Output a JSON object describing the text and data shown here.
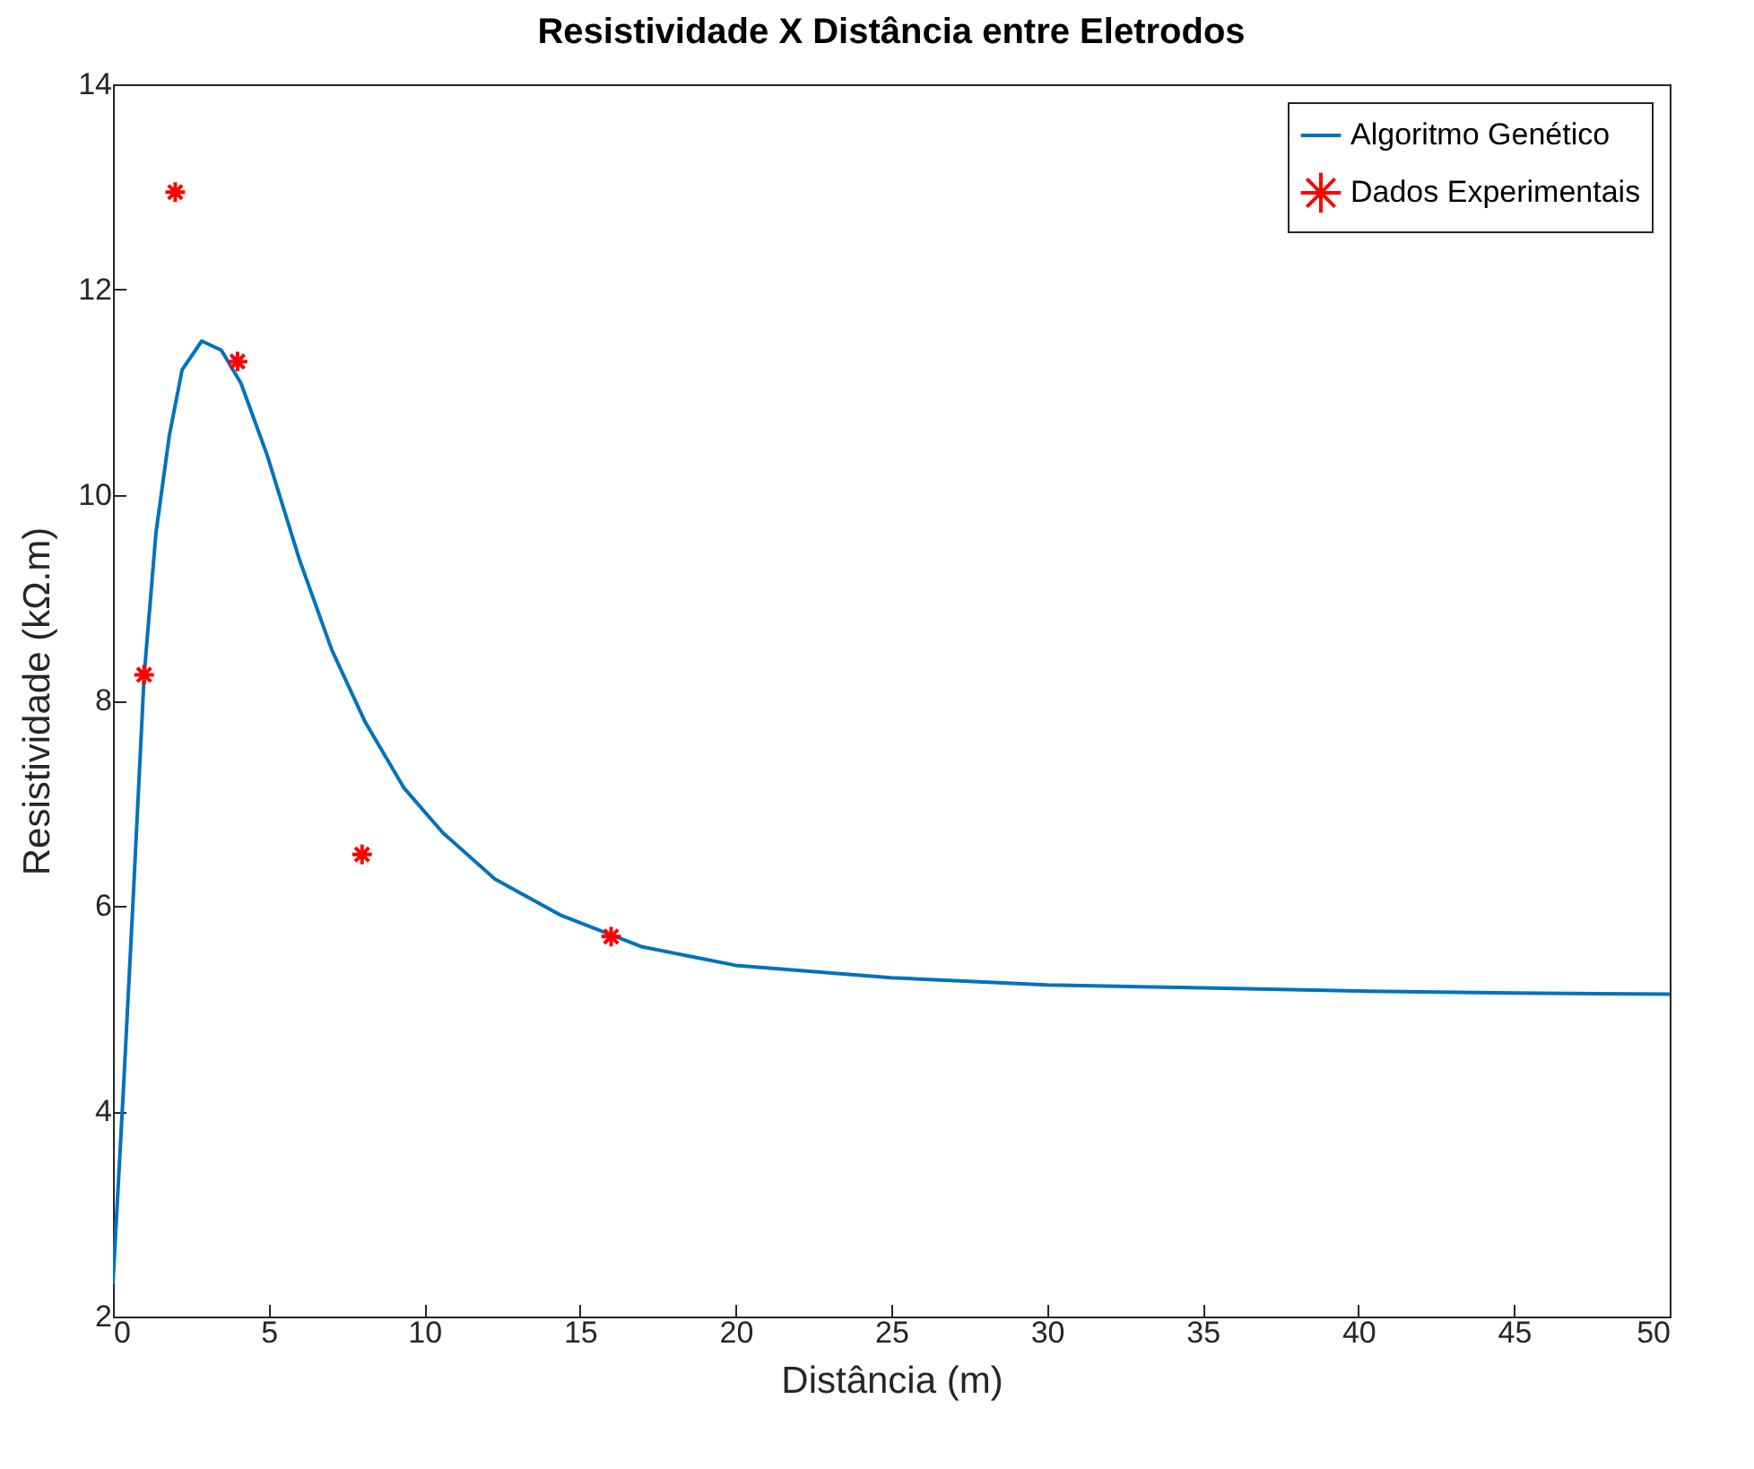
{
  "chart_data": {
    "type": "line",
    "title": "Resistividade X Distância entre Eletrodos",
    "xlabel": "Distância (m)",
    "ylabel": "Resistividade (kΩ.m)",
    "xlim": [
      0,
      50
    ],
    "xticks": [
      0,
      5,
      10,
      15,
      20,
      25,
      30,
      35,
      40,
      45,
      50
    ],
    "ylim": [
      2,
      14
    ],
    "yticks": [
      2,
      4,
      6,
      8,
      10,
      12,
      14
    ],
    "grid": false,
    "legend": "top right",
    "series": [
      {
        "name": "Algoritmo Genético",
        "color": "#0072bd",
        "line_style": "solid",
        "marker": "none",
        "x": [
          0,
          0.34,
          0.66,
          1.0,
          1.38,
          1.81,
          2.22,
          2.85,
          3.48,
          4.11,
          4.95,
          5.99,
          7.03,
          8.1,
          9.34,
          10.6,
          12.27,
          14.37,
          17.0,
          20,
          25,
          30,
          35,
          40,
          45,
          50
        ],
        "values": [
          2.33,
          4.24,
          6.14,
          8.24,
          9.63,
          10.58,
          11.22,
          11.5,
          11.41,
          11.09,
          10.39,
          9.37,
          8.49,
          7.79,
          7.15,
          6.71,
          6.26,
          5.91,
          5.6,
          5.42,
          5.3,
          5.23,
          5.2,
          5.17,
          5.15,
          5.14
        ]
      },
      {
        "name": "Dados Experimentais",
        "type": "scatter",
        "color": "#ff0000",
        "marker": "cross",
        "x": [
          1,
          2,
          4,
          8,
          16
        ],
        "values": [
          8.25,
          12.95,
          11.3,
          6.5,
          5.7
        ]
      }
    ]
  }
}
